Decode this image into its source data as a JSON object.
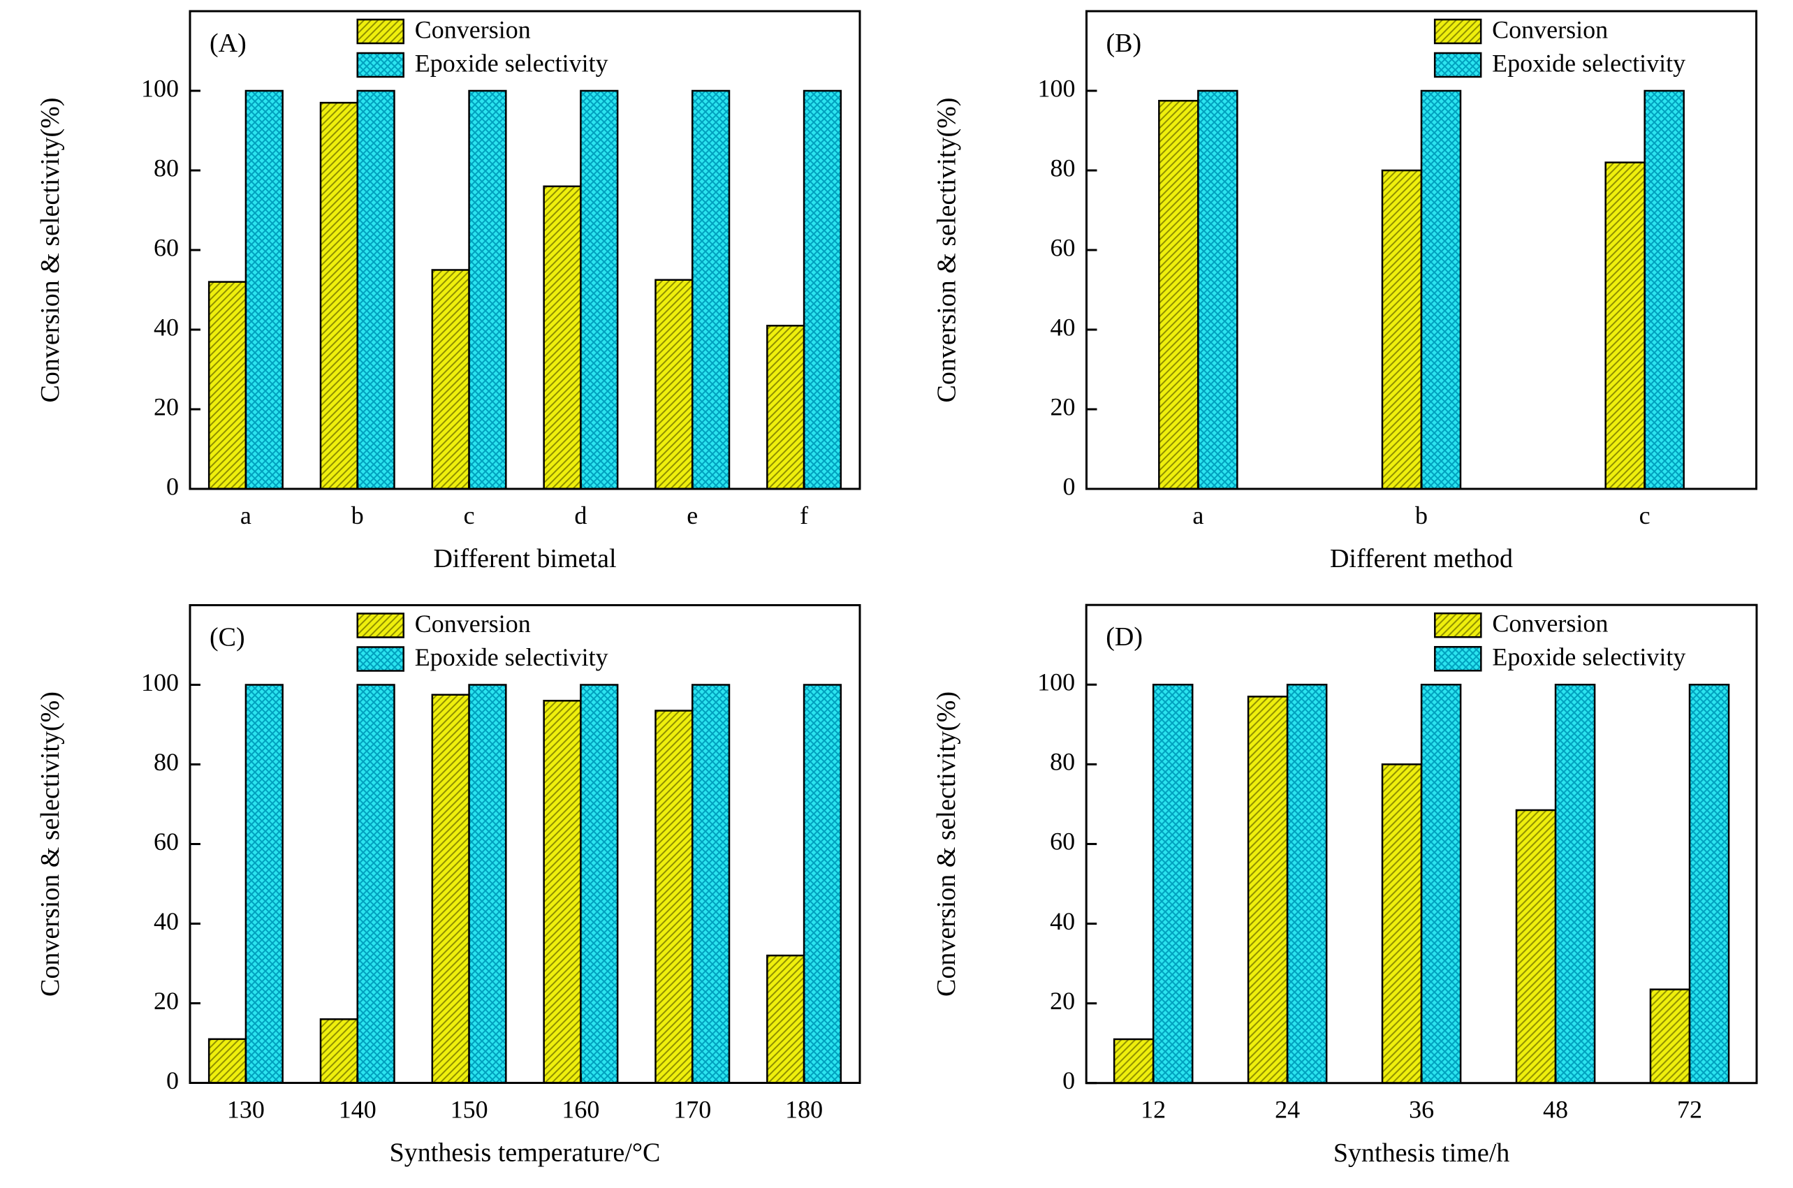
{
  "figure": {
    "background": "#ffffff",
    "description": "Four-panel bar chart figure comparing catalyst Conversion and Epoxide selectivity"
  },
  "colors": {
    "conversion_fill": "#EFEF0D",
    "conversion_hatch": "#8F8F00",
    "selectivity_fill": "#2BE4EF",
    "selectivity_hatch": "#00A0BE",
    "edge": "#000000",
    "axis": "#000000",
    "text": "#000000"
  },
  "legend": {
    "items": [
      "Conversion",
      "Epoxide selectivity"
    ]
  },
  "chart_data": [
    {
      "type": "bar",
      "panel_label": "(A)",
      "categories": [
        "a",
        "b",
        "c",
        "d",
        "e",
        "f"
      ],
      "series": [
        {
          "name": "Conversion",
          "values": [
            52,
            97,
            55,
            76,
            52.5,
            41
          ]
        },
        {
          "name": "Epoxide selectivity",
          "values": [
            100,
            100,
            100,
            100,
            100,
            100
          ]
        }
      ],
      "xlabel": "Different bimetal",
      "ylabel": "Conversion & selectivity(%)",
      "yticks": [
        0,
        20,
        40,
        60,
        80,
        100
      ],
      "ylim": [
        0,
        120
      ],
      "grid": false,
      "legend_pos": "top-center"
    },
    {
      "type": "bar",
      "panel_label": "(B)",
      "categories": [
        "a",
        "b",
        "c"
      ],
      "series": [
        {
          "name": "Conversion",
          "values": [
            97.5,
            80,
            82
          ]
        },
        {
          "name": "Epoxide selectivity",
          "values": [
            100,
            100,
            100
          ]
        }
      ],
      "xlabel": "Different method",
      "ylabel": "Conversion & selectivity(%)",
      "yticks": [
        0,
        20,
        40,
        60,
        80,
        100
      ],
      "ylim": [
        0,
        120
      ],
      "grid": false,
      "legend_pos": "top-right"
    },
    {
      "type": "bar",
      "panel_label": "(C)",
      "categories": [
        "130",
        "140",
        "150",
        "160",
        "170",
        "180"
      ],
      "series": [
        {
          "name": "Conversion",
          "values": [
            11,
            16,
            97.5,
            96,
            93.5,
            32
          ]
        },
        {
          "name": "Epoxide selectivity",
          "values": [
            100,
            100,
            100,
            100,
            100,
            100
          ]
        }
      ],
      "xlabel": "Synthesis temperature/°C",
      "ylabel": "Conversion & selectivity(%)",
      "yticks": [
        0,
        20,
        40,
        60,
        80,
        100
      ],
      "ylim": [
        0,
        120
      ],
      "grid": false,
      "legend_pos": "top-center"
    },
    {
      "type": "bar",
      "panel_label": "(D)",
      "categories": [
        "12",
        "24",
        "36",
        "48",
        "72"
      ],
      "series": [
        {
          "name": "Conversion",
          "values": [
            11,
            97,
            80,
            68.5,
            23.5
          ]
        },
        {
          "name": "Epoxide selectivity",
          "values": [
            100,
            100,
            100,
            100,
            100
          ]
        }
      ],
      "xlabel": "Synthesis time/h",
      "ylabel": "Conversion & selectivity(%)",
      "yticks": [
        0,
        20,
        40,
        60,
        80,
        100
      ],
      "ylim": [
        0,
        120
      ],
      "grid": false,
      "legend_pos": "top-right"
    }
  ]
}
